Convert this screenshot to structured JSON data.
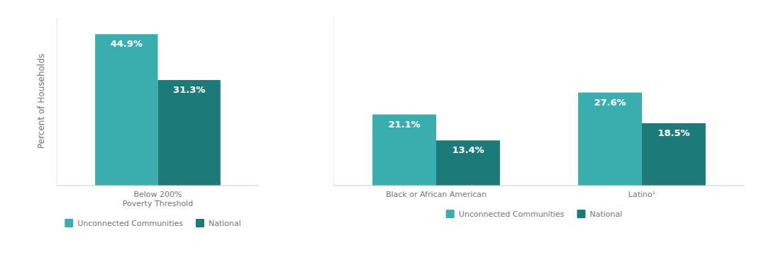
{
  "chart_data": [
    {
      "type": "bar",
      "categories": [
        "Below 200%\nPoverty Threshold"
      ],
      "series": [
        {
          "name": "Unconnected Communities",
          "color": "#3AAEAF",
          "values": [
            44.9
          ],
          "value_labels": [
            "44.9%"
          ]
        },
        {
          "name": "National",
          "color": "#1C7A78",
          "values": [
            31.3
          ],
          "value_labels": [
            "31.3%"
          ]
        }
      ],
      "ylabel": "Percent of Households",
      "ylim": [
        0,
        50
      ],
      "tick_labels": "x",
      "data_labels": true,
      "legend": "bottom",
      "grid": false
    },
    {
      "type": "bar",
      "categories": [
        "Black or African American",
        "Latino¹"
      ],
      "series": [
        {
          "name": "Unconnected Communities",
          "color": "#3AAEAF",
          "values": [
            21.1,
            27.6
          ],
          "value_labels": [
            "21.1%",
            "27.6%"
          ]
        },
        {
          "name": "National",
          "color": "#1C7A78",
          "values": [
            13.4,
            18.5
          ],
          "value_labels": [
            "13.4%",
            "18.5%"
          ]
        }
      ],
      "ylim": [
        0,
        50
      ],
      "tick_labels": "x",
      "data_labels": true,
      "legend": "bottom",
      "grid": false
    }
  ]
}
